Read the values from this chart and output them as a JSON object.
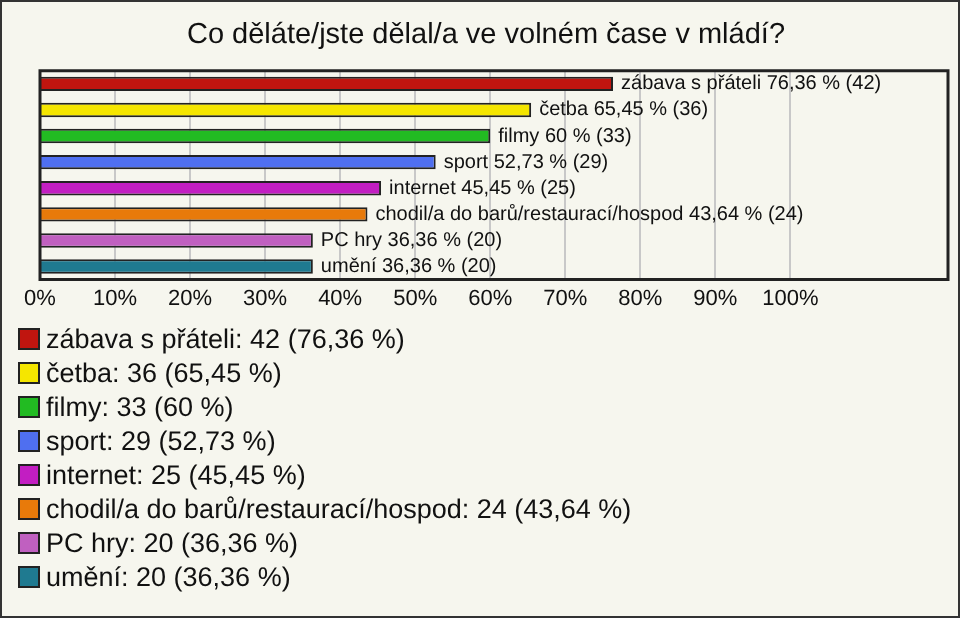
{
  "chart_data": {
    "type": "bar",
    "orientation": "horizontal",
    "title": "Co děláte/jste dělal/a ve volném čase v mládí?",
    "categories": [
      "zábava s přáteli",
      "četba",
      "filmy",
      "sport",
      "internet",
      "chodil/a do barů/restaurací/hospod",
      "PC hry",
      "umění"
    ],
    "values": [
      76.36,
      65.45,
      60,
      52.73,
      45.45,
      43.64,
      36.36,
      36.36
    ],
    "colors": [
      "#c0150f",
      "#f5e600",
      "#22bb22",
      "#4f6ff0",
      "#c21ec2",
      "#e87a0a",
      "#c060c0",
      "#1f7a90"
    ],
    "value_labels": [
      "76,36 % (42)",
      "65,45 % (36)",
      "60 % (33)",
      "52,73 % (29)",
      "45,45 % (25)",
      "43,64 % (24)",
      "36,36 % (20)",
      "36,36 % (20)"
    ],
    "xlim": [
      0,
      121
    ],
    "xticks": [
      {
        "value": 0,
        "label": "0%"
      },
      {
        "value": 10,
        "label": "10%"
      },
      {
        "value": 20,
        "label": "20%"
      },
      {
        "value": 30,
        "label": "30%"
      },
      {
        "value": 40,
        "label": "40%"
      },
      {
        "value": 50,
        "label": "50%"
      },
      {
        "value": 60,
        "label": "60%"
      },
      {
        "value": 70,
        "label": "70%"
      },
      {
        "value": 80,
        "label": "80%"
      },
      {
        "value": 90,
        "label": "90%"
      },
      {
        "value": 100,
        "label": "100%"
      }
    ],
    "grid": "x",
    "legend": false,
    "tick_labels": "x",
    "annotations": [
      "zábava s přáteli: 42 (76,36 %)",
      "četba: 36 (65,45 %)",
      "filmy: 33 (60 %)",
      "sport: 29 (52,73 %)",
      "internet: 25 (45,45 %)",
      "chodil/a do barů/restaurací/hospod: 24 (43,64 %)",
      "PC hry: 20 (36,36 %)",
      "umění: 20 (36,36 %)"
    ]
  }
}
